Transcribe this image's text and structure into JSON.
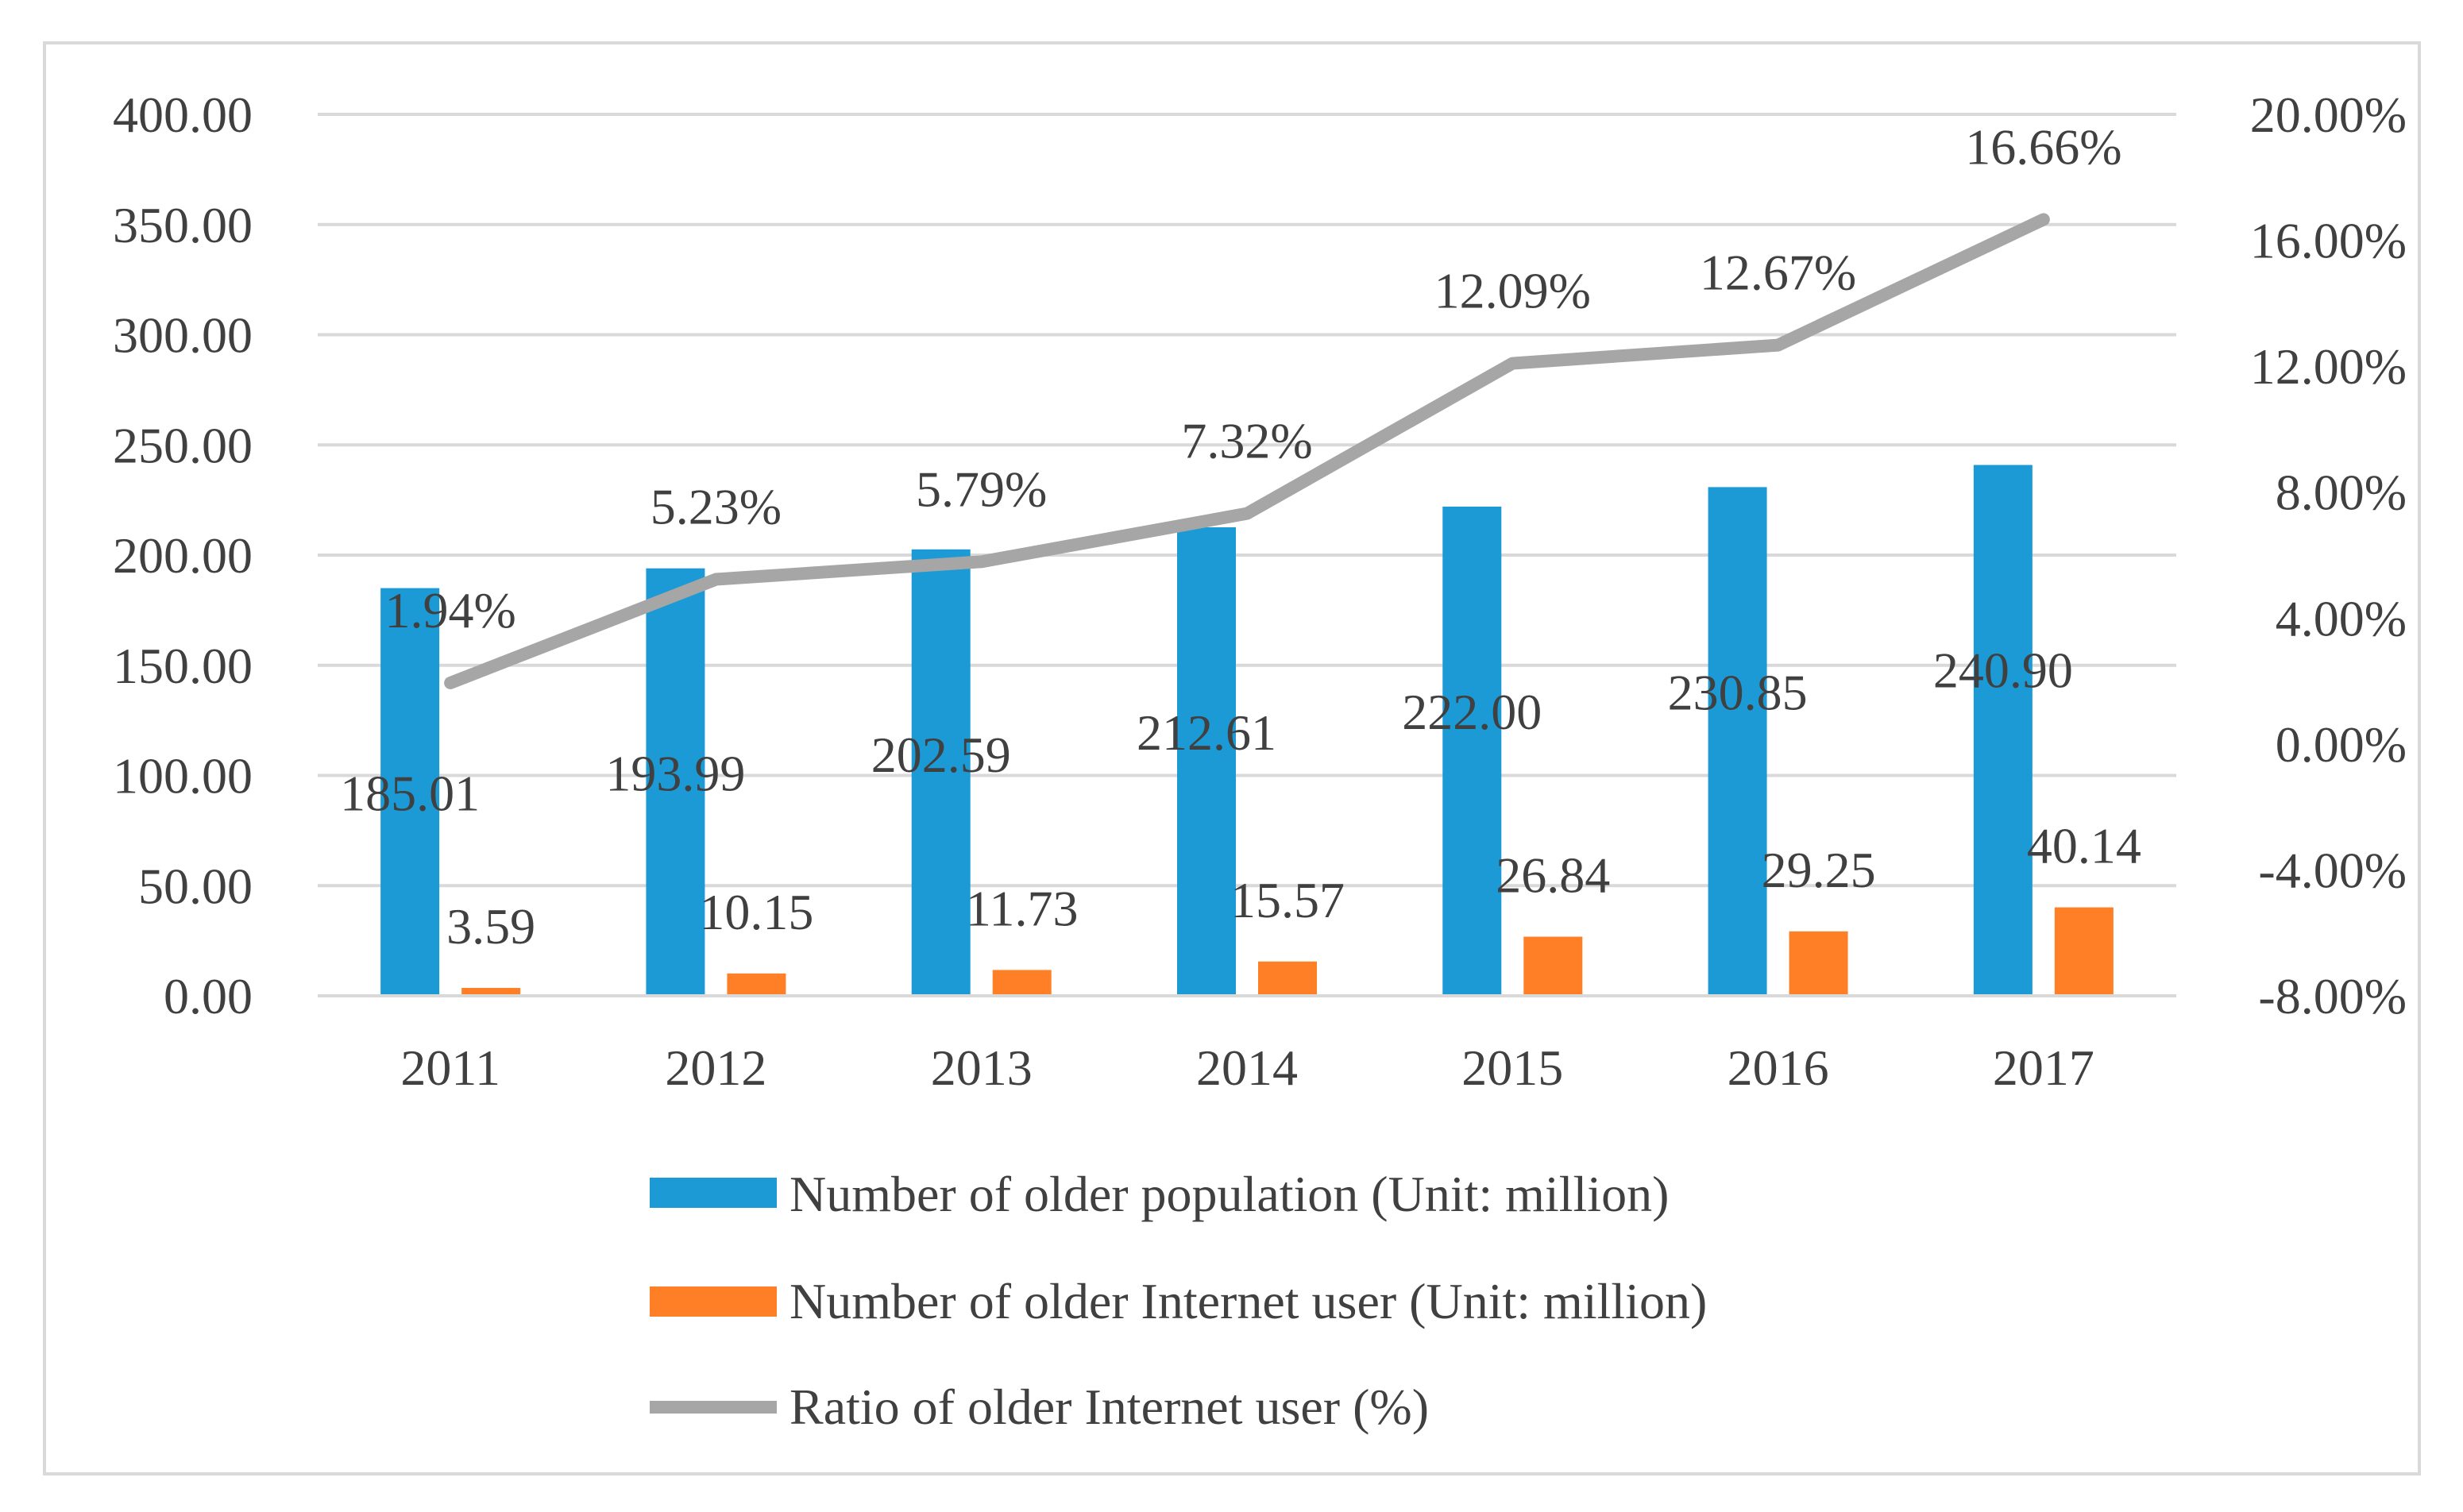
{
  "chart_data": {
    "type": "bar",
    "categories": [
      "2011",
      "2012",
      "2013",
      "2014",
      "2015",
      "2016",
      "2017"
    ],
    "series": [
      {
        "name": "Number of older population (Unit: million)",
        "kind": "bar",
        "axis": "left",
        "color": "#1C9AD6",
        "values": [
          185.01,
          193.99,
          202.59,
          212.61,
          222.0,
          230.85,
          240.9
        ],
        "labels": [
          "185.01",
          "193.99",
          "202.59",
          "212.61",
          "222.00",
          "230.85",
          "240.90"
        ]
      },
      {
        "name": "Number of older Internet user (Unit: million)",
        "kind": "bar",
        "axis": "left",
        "color": "#FF7F27",
        "values": [
          3.59,
          10.15,
          11.73,
          15.57,
          26.84,
          29.25,
          40.14
        ],
        "labels": [
          "3.59",
          "10.15",
          "11.73",
          "15.57",
          "26.84",
          "29.25",
          "40.14"
        ]
      },
      {
        "name": "Ratio of older Internet user (%)",
        "kind": "line",
        "axis": "right",
        "color": "#A6A6A6",
        "values": [
          1.94,
          5.23,
          5.79,
          7.32,
          12.09,
          12.67,
          16.66
        ],
        "labels": [
          "1.94%",
          "5.23%",
          "5.79%",
          "7.32%",
          "12.09%",
          "12.67%",
          "16.66%"
        ]
      }
    ],
    "y_left": {
      "ylim": [
        0,
        400
      ],
      "ticks": [
        "0.00",
        "50.00",
        "100.00",
        "150.00",
        "200.00",
        "250.00",
        "300.00",
        "350.00",
        "400.00"
      ]
    },
    "y_right": {
      "ylim": [
        -8,
        20
      ],
      "ticks": [
        "-8.00%",
        "-4.00%",
        "0.00%",
        "4.00%",
        "8.00%",
        "12.00%",
        "16.00%",
        "20.00%"
      ]
    },
    "grid": true,
    "legend_position": "bottom",
    "gridline_color": "#D9D9D9",
    "text_color": "#404040"
  }
}
